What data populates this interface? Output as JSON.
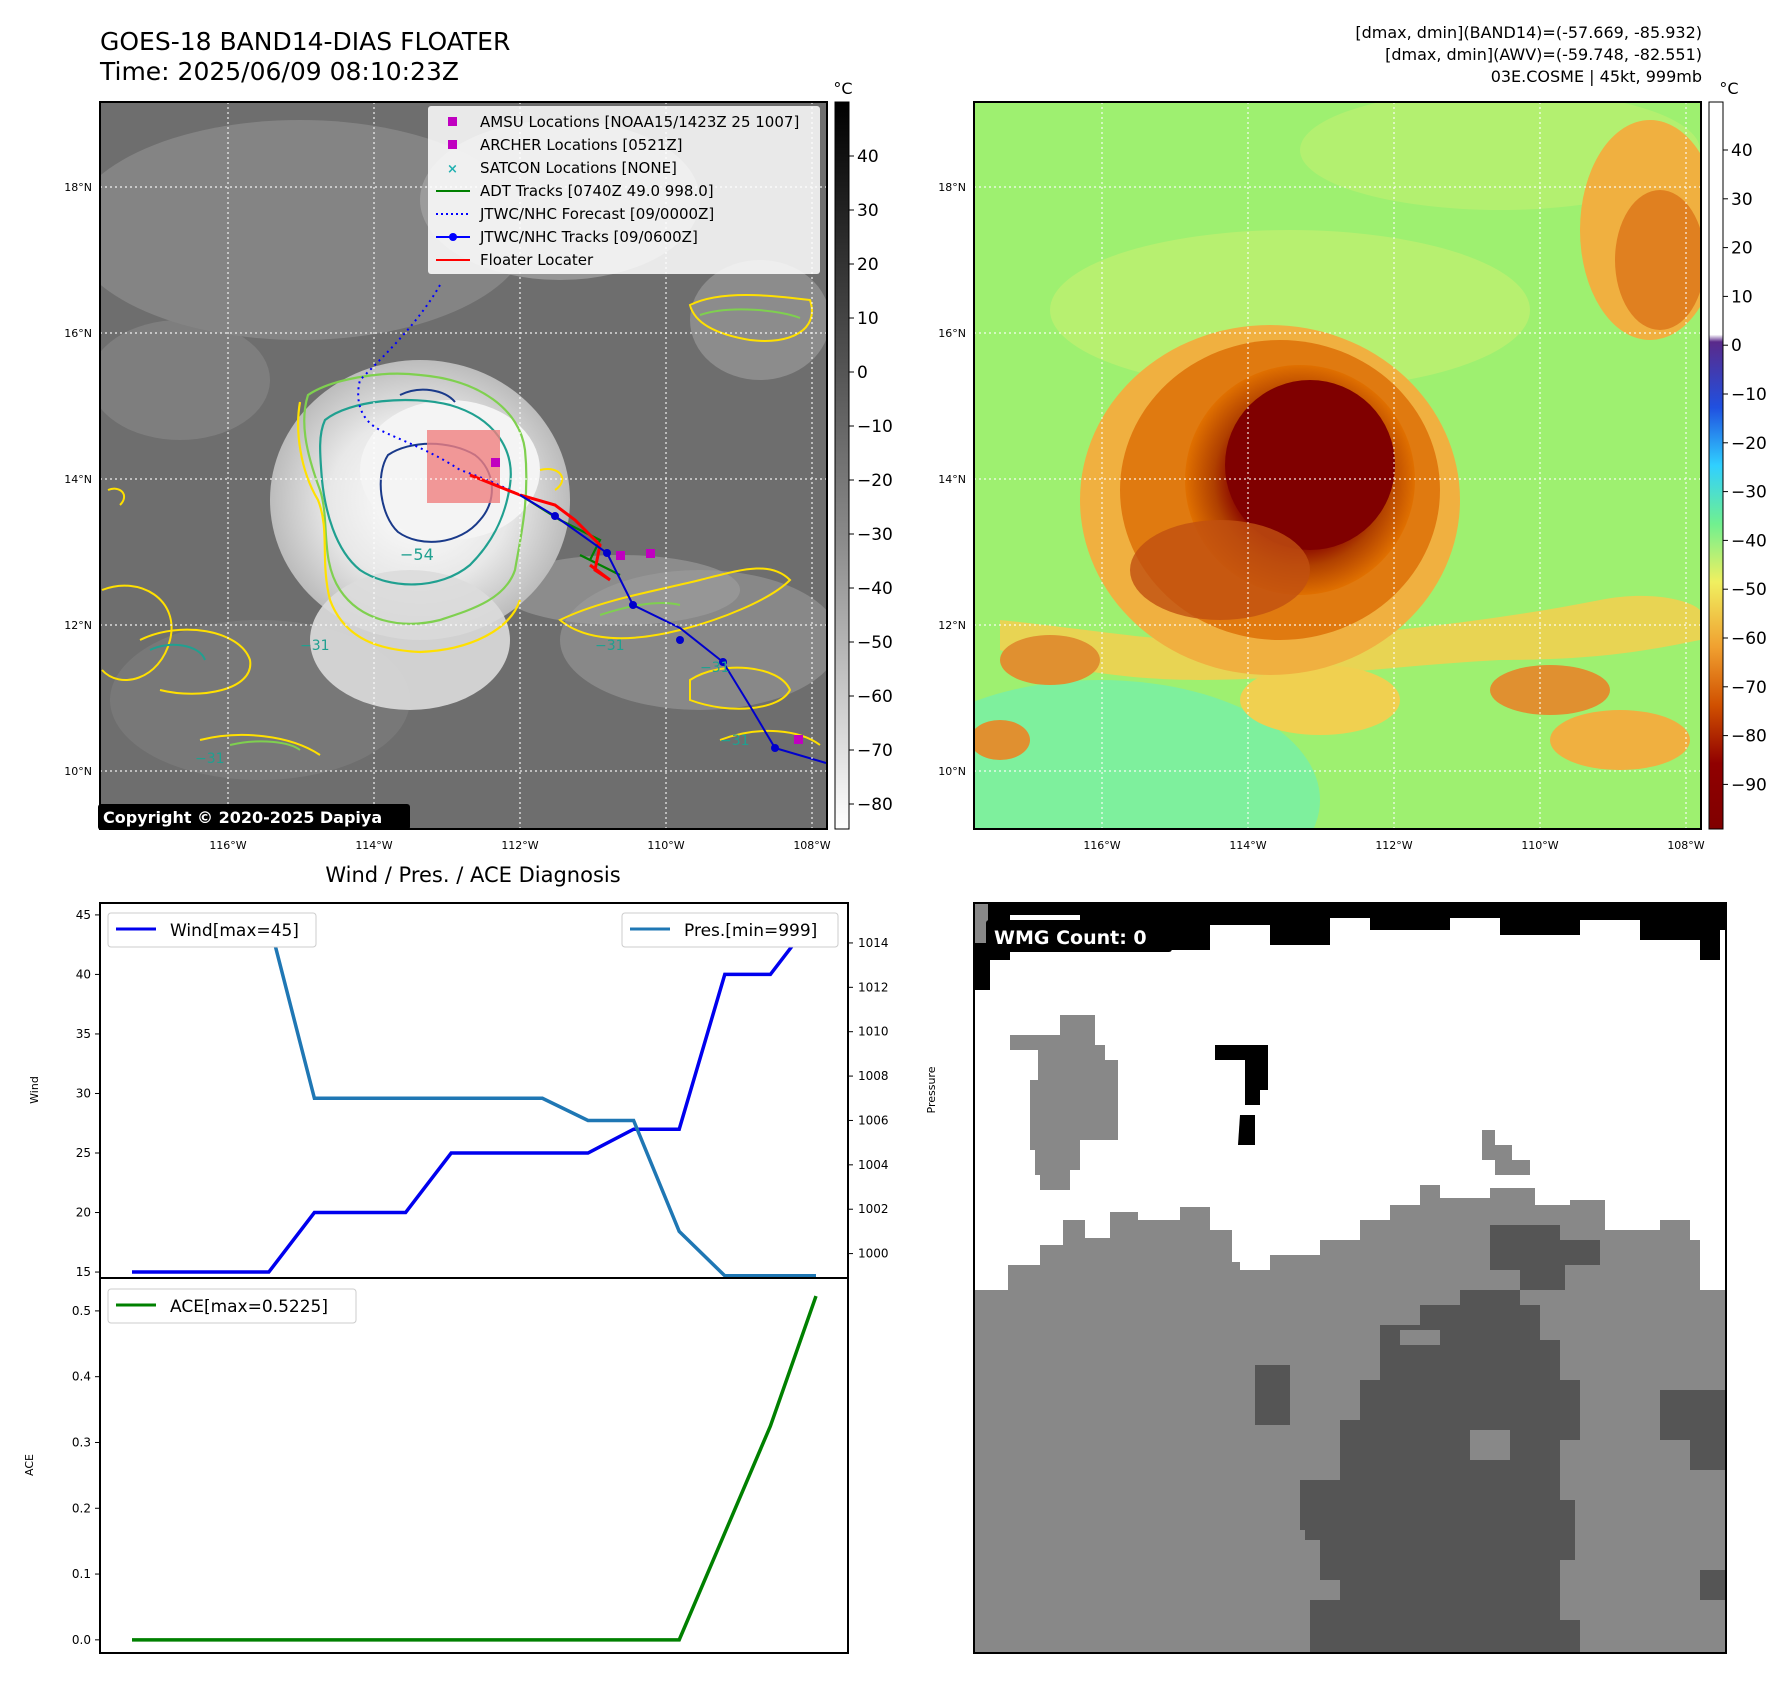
{
  "header": {
    "title_line1": "GOES-18 BAND14-DIAS FLOATER",
    "title_line2": "Time: 2025/06/09 08:10:23Z",
    "stats_line1": "[dmax, dmin](BAND14)=(-57.669, -85.932)",
    "stats_line2": "[dmax, dmin](AWV)=(-59.748, -82.551)",
    "stats_line3": "03E.COSME | 45kt, 999mb"
  },
  "copyright": "Copyright © 2020-2025 Dapiya",
  "map_axes": {
    "lat_ticks": [
      "18°N",
      "16°N",
      "14°N",
      "12°N",
      "10°N"
    ],
    "lon_ticks": [
      "116°W",
      "114°W",
      "112°W",
      "110°W",
      "108°W"
    ]
  },
  "ir_colorbar": {
    "unit": "°C",
    "ticks": [
      "40",
      "30",
      "20",
      "10",
      "0",
      "−10",
      "−20",
      "−30",
      "−40",
      "−50",
      "−60",
      "−70",
      "−80"
    ]
  },
  "awv_colorbar": {
    "unit": "°C",
    "ticks": [
      "40",
      "30",
      "20",
      "10",
      "0",
      "−10",
      "−20",
      "−30",
      "−40",
      "−50",
      "−60",
      "−70",
      "−80",
      "−90"
    ]
  },
  "contour_labels": [
    "−54",
    "−31",
    "−31",
    "−31",
    "−31",
    "−31"
  ],
  "legend": {
    "items": [
      {
        "label": "AMSU Locations [NOAA15/1423Z 25 1007]",
        "color": "#c000c0",
        "marker": "square"
      },
      {
        "label": "ARCHER Locations [0521Z]",
        "color": "#c000c0",
        "marker": "square"
      },
      {
        "label": "SATCON Locations [NONE]",
        "color": "#20b0b0",
        "marker": "x"
      },
      {
        "label": "ADT Tracks [0740Z 49.0 998.0]",
        "color": "#008000",
        "marker": "line"
      },
      {
        "label": "JTWC/NHC Forecast [09/0000Z]",
        "color": "#0000ff",
        "marker": "dotted"
      },
      {
        "label": "JTWC/NHC Tracks [09/0600Z]",
        "color": "#0000ff",
        "marker": "line-dot"
      },
      {
        "label": "Floater Locater",
        "color": "#ff0000",
        "marker": "line"
      }
    ]
  },
  "diagnosis_title": "Wind / Pres. / ACE Diagnosis",
  "wmg_label": "WMG Count: 0",
  "chart_data": [
    {
      "type": "line",
      "title": "Wind / Pres. / ACE Diagnosis",
      "ylabel": "Wind",
      "y2label": "Pressure",
      "x": [
        0,
        1,
        2,
        3,
        4,
        5,
        6,
        7,
        8,
        9,
        10,
        11,
        12,
        13,
        14,
        15
      ],
      "ylim": [
        14.5,
        46
      ],
      "y2lim": [
        998.9,
        1015.8
      ],
      "yticks": [
        15,
        20,
        25,
        30,
        35,
        40,
        45
      ],
      "y2ticks": [
        1000,
        1002,
        1004,
        1006,
        1008,
        1010,
        1012,
        1014
      ],
      "series": [
        {
          "name": "Wind[max=45]",
          "color": "#0000ee",
          "axis": "left",
          "values": [
            15,
            15,
            15,
            15,
            20,
            20,
            20,
            25,
            25,
            25,
            25,
            27,
            27,
            40,
            40,
            45
          ]
        },
        {
          "name": "Pres.[min=999]",
          "color": "#1f77b4",
          "axis": "right",
          "values": [
            1015,
            1015,
            1015,
            1015,
            1007,
            1007,
            1007,
            1007,
            1007,
            1007,
            1006,
            1006,
            1001,
            999,
            999,
            999
          ]
        }
      ]
    },
    {
      "type": "line",
      "ylabel": "ACE",
      "x": [
        0,
        1,
        2,
        3,
        4,
        5,
        6,
        7,
        8,
        9,
        10,
        11,
        12,
        13,
        14,
        15
      ],
      "ylim": [
        -0.02,
        0.55
      ],
      "yticks": [
        0.0,
        0.1,
        0.2,
        0.3,
        0.4,
        0.5
      ],
      "ytick_labels": [
        "0.0",
        "0.1",
        "0.2",
        "0.3",
        "0.4",
        "0.5"
      ],
      "series": [
        {
          "name": "ACE[max=0.5225]",
          "color": "#008000",
          "values": [
            0,
            0,
            0,
            0,
            0,
            0,
            0,
            0,
            0,
            0,
            0,
            0,
            0,
            0.1625,
            0.325,
            0.5225
          ]
        }
      ]
    }
  ]
}
